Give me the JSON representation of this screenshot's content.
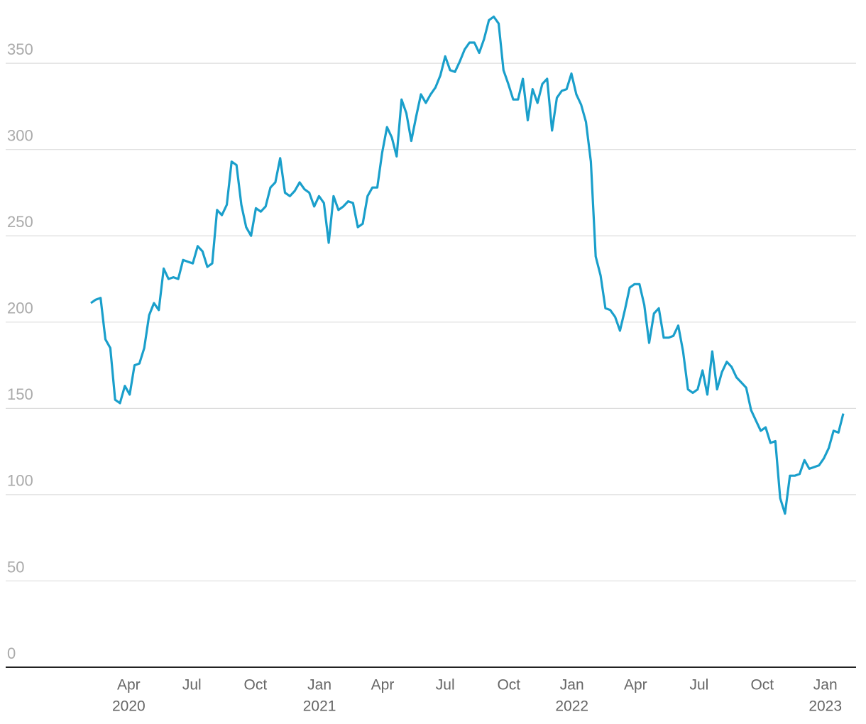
{
  "chart_data": {
    "type": "line",
    "values": [
      211,
      213,
      214,
      190,
      185,
      155,
      153,
      163,
      158,
      175,
      176,
      185,
      204,
      211,
      207,
      231,
      225,
      226,
      225,
      236,
      235,
      234,
      244,
      241,
      232,
      234,
      265,
      262,
      268,
      293,
      291,
      268,
      255,
      250,
      266,
      264,
      267,
      278,
      281,
      295,
      275,
      273,
      276,
      281,
      277,
      275,
      267,
      273,
      269,
      246,
      273,
      265,
      267,
      270,
      269,
      255,
      257,
      273,
      278,
      278,
      298,
      313,
      307,
      296,
      329,
      321,
      305,
      319,
      332,
      327,
      332,
      336,
      343,
      354,
      346,
      345,
      351,
      358,
      362,
      362,
      356,
      364,
      375,
      377,
      373,
      346,
      338,
      329,
      329,
      341,
      317,
      335,
      327,
      338,
      341,
      311,
      330,
      334,
      335,
      344,
      332,
      326,
      316,
      293,
      238,
      227,
      208,
      207,
      203,
      195,
      207,
      220,
      222,
      222,
      210,
      188,
      205,
      208,
      191,
      191,
      192,
      198,
      183,
      161,
      159,
      161,
      172,
      158,
      183,
      161,
      171,
      177,
      174,
      168,
      165,
      162,
      149,
      143,
      137,
      139,
      130,
      131,
      98,
      89,
      111,
      111,
      112,
      120,
      115,
      116,
      117,
      121,
      127,
      137,
      136,
      147
    ],
    "color": "#1a9fcb",
    "ylim": [
      0,
      380
    ],
    "yticks": [
      0,
      50,
      100,
      150,
      200,
      250,
      300,
      350
    ],
    "grid": true,
    "xticks": [
      {
        "value": 7.8,
        "label": "Apr",
        "year": "2020"
      },
      {
        "value": 20.8,
        "label": "Jul"
      },
      {
        "value": 33.9,
        "label": "Oct"
      },
      {
        "value": 47.1,
        "label": "Jan",
        "year": "2021"
      },
      {
        "value": 60.1,
        "label": "Apr"
      },
      {
        "value": 73.0,
        "label": "Jul"
      },
      {
        "value": 86.1,
        "label": "Oct"
      },
      {
        "value": 99.1,
        "label": "Jan",
        "year": "2022"
      },
      {
        "value": 112.2,
        "label": "Apr"
      },
      {
        "value": 125.3,
        "label": "Jul"
      },
      {
        "value": 138.3,
        "label": "Oct"
      },
      {
        "value": 151.3,
        "label": "Jan",
        "year": "2023"
      }
    ]
  }
}
